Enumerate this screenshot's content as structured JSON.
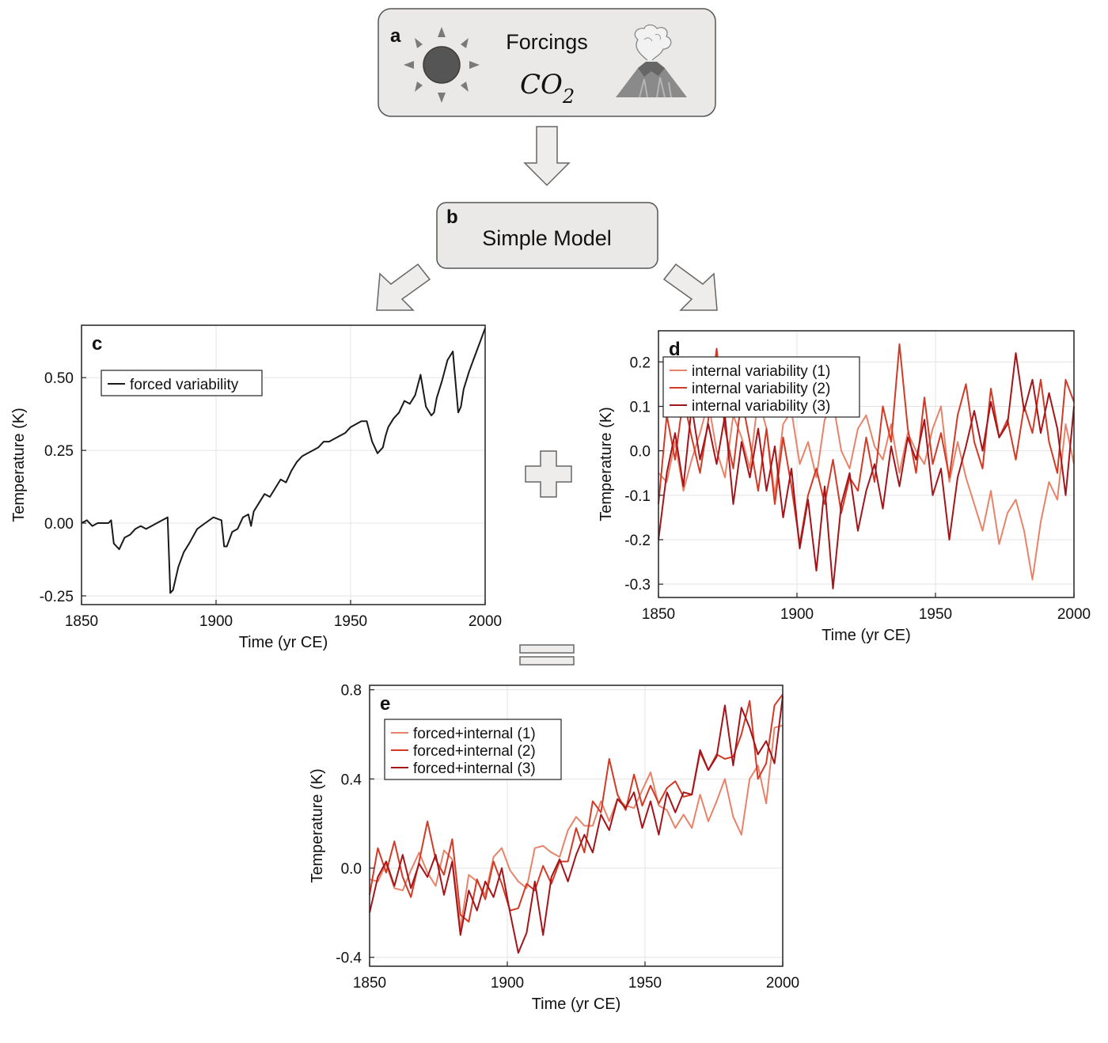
{
  "diagram": {
    "box_a": {
      "letter": "a",
      "title": "Forcings",
      "co2_main": "CO",
      "co2_sub": "2"
    },
    "box_b": {
      "letter": "b",
      "title": "Simple Model"
    },
    "icons": [
      "sun-icon",
      "volcano-icon",
      "arrow-down-icon",
      "arrow-left-down-icon",
      "arrow-right-down-icon",
      "plus-icon",
      "equals-icon"
    ],
    "colors": {
      "box_fill": "#ebe9e7",
      "box_stroke": "#555555",
      "arrow_fill": "#efedeb",
      "black": "#1a1a1a",
      "light_red": "#e8836a",
      "mid_red": "#d23a26",
      "dark_red": "#a3151b"
    }
  },
  "chart_data": [
    {
      "id": "c",
      "type": "line",
      "panel_letter": "c",
      "xlabel": "Time (yr CE)",
      "ylabel": "Temperature (K)",
      "xlim": [
        1850,
        2000
      ],
      "ylim": [
        -0.28,
        0.68
      ],
      "xticks": [
        "1850",
        "1900",
        "1950",
        "2000"
      ],
      "yticks": [
        "-0.25",
        "0.00",
        "0.25",
        "0.50"
      ],
      "grid": true,
      "legend_position": "top-left",
      "series": [
        {
          "name": "forced variability",
          "color": "#1a1a1a",
          "x": [
            1850,
            1852,
            1854,
            1856,
            1858,
            1860,
            1861,
            1862,
            1864,
            1866,
            1868,
            1870,
            1872,
            1874,
            1876,
            1878,
            1880,
            1882,
            1883,
            1884,
            1886,
            1888,
            1890,
            1893,
            1896,
            1899,
            1902,
            1903,
            1904,
            1906,
            1908,
            1910,
            1912,
            1913,
            1914,
            1916,
            1918,
            1920,
            1922,
            1924,
            1926,
            1928,
            1930,
            1932,
            1934,
            1936,
            1938,
            1940,
            1942,
            1944,
            1946,
            1948,
            1950,
            1952,
            1954,
            1956,
            1958,
            1960,
            1961,
            1962,
            1963,
            1964,
            1966,
            1968,
            1970,
            1972,
            1974,
            1976,
            1978,
            1980,
            1981,
            1982,
            1984,
            1986,
            1988,
            1990,
            1991,
            1992,
            1994,
            1996,
            1998,
            2000
          ],
          "y": [
            0.0,
            0.01,
            -0.01,
            0.0,
            0.0,
            0.0,
            0.01,
            -0.07,
            -0.09,
            -0.05,
            -0.04,
            -0.02,
            -0.01,
            -0.02,
            -0.01,
            0.0,
            0.01,
            0.02,
            -0.24,
            -0.23,
            -0.15,
            -0.1,
            -0.07,
            -0.02,
            0.0,
            0.02,
            0.01,
            -0.08,
            -0.08,
            -0.03,
            -0.02,
            0.02,
            0.03,
            -0.01,
            0.04,
            0.07,
            0.1,
            0.09,
            0.12,
            0.15,
            0.14,
            0.18,
            0.21,
            0.23,
            0.24,
            0.25,
            0.26,
            0.28,
            0.28,
            0.29,
            0.3,
            0.31,
            0.33,
            0.34,
            0.35,
            0.35,
            0.28,
            0.24,
            0.25,
            0.26,
            0.3,
            0.33,
            0.36,
            0.38,
            0.42,
            0.41,
            0.44,
            0.51,
            0.4,
            0.37,
            0.38,
            0.43,
            0.49,
            0.56,
            0.59,
            0.38,
            0.4,
            0.46,
            0.52,
            0.57,
            0.62,
            0.67
          ]
        }
      ]
    },
    {
      "id": "d",
      "type": "line",
      "panel_letter": "d",
      "xlabel": "Time (yr CE)",
      "ylabel": "Temperature (K)",
      "xlim": [
        1850,
        2000
      ],
      "ylim": [
        -0.33,
        0.27
      ],
      "xticks": [
        "1850",
        "1900",
        "1950",
        "2000"
      ],
      "yticks": [
        "-0.3",
        "-0.2",
        "-0.1",
        "0.0",
        "0.1",
        "0.2"
      ],
      "grid": true,
      "legend_position": "top-left",
      "series": [
        {
          "name": "internal variability (1)",
          "color": "#e8836a",
          "x": [
            1850,
            1853,
            1856,
            1859,
            1862,
            1865,
            1868,
            1871,
            1874,
            1877,
            1880,
            1883,
            1886,
            1889,
            1892,
            1895,
            1898,
            1901,
            1904,
            1907,
            1910,
            1913,
            1916,
            1919,
            1922,
            1925,
            1928,
            1931,
            1934,
            1937,
            1940,
            1943,
            1946,
            1949,
            1952,
            1955,
            1958,
            1961,
            1964,
            1967,
            1970,
            1973,
            1976,
            1979,
            1982,
            1985,
            1988,
            1991,
            1994,
            1997,
            2000
          ],
          "y": [
            -0.05,
            -0.07,
            0.02,
            -0.09,
            -0.02,
            0.04,
            0.11,
            0.0,
            -0.06,
            0.08,
            0.03,
            -0.04,
            0.12,
            0.05,
            -0.1,
            0.06,
            0.09,
            -0.03,
            0.02,
            -0.06,
            0.07,
            0.11,
            0.0,
            -0.04,
            0.05,
            0.08,
            0.01,
            -0.02,
            0.06,
            -0.05,
            0.04,
            0.0,
            -0.03,
            0.05,
            0.1,
            -0.07,
            0.02,
            -0.06,
            -0.12,
            -0.18,
            -0.09,
            -0.21,
            -0.14,
            -0.11,
            -0.18,
            -0.29,
            -0.16,
            -0.07,
            -0.11,
            0.06,
            -0.03
          ]
        },
        {
          "name": "internal variability (2)",
          "color": "#d23a26",
          "x": [
            1850,
            1853,
            1856,
            1859,
            1862,
            1865,
            1868,
            1871,
            1874,
            1877,
            1880,
            1883,
            1886,
            1889,
            1892,
            1895,
            1898,
            1901,
            1904,
            1907,
            1910,
            1913,
            1916,
            1919,
            1922,
            1925,
            1928,
            1931,
            1934,
            1937,
            1940,
            1943,
            1946,
            1949,
            1952,
            1955,
            1958,
            1961,
            1964,
            1967,
            1970,
            1973,
            1976,
            1979,
            1982,
            1985,
            1988,
            1991,
            1994,
            1997,
            2000
          ],
          "y": [
            -0.12,
            0.08,
            -0.02,
            0.12,
            0.03,
            -0.05,
            0.07,
            0.23,
            0.05,
            -0.04,
            0.12,
            0.02,
            -0.09,
            0.05,
            -0.12,
            0.03,
            -0.08,
            -0.21,
            -0.1,
            -0.04,
            -0.12,
            -0.02,
            -0.14,
            -0.06,
            -0.09,
            0.03,
            -0.07,
            0.1,
            0.02,
            0.24,
            0.05,
            -0.05,
            0.12,
            -0.03,
            0.04,
            -0.06,
            0.08,
            0.15,
            0.02,
            -0.04,
            0.14,
            0.03,
            0.07,
            -0.02,
            0.1,
            0.04,
            0.16,
            0.02,
            -0.05,
            0.16,
            0.11
          ]
        },
        {
          "name": "internal variability (3)",
          "color": "#a3151b",
          "x": [
            1850,
            1853,
            1856,
            1859,
            1862,
            1865,
            1868,
            1871,
            1874,
            1877,
            1880,
            1883,
            1886,
            1889,
            1892,
            1895,
            1898,
            1901,
            1904,
            1907,
            1910,
            1913,
            1916,
            1919,
            1922,
            1925,
            1928,
            1931,
            1934,
            1937,
            1940,
            1943,
            1946,
            1949,
            1952,
            1955,
            1958,
            1961,
            1964,
            1967,
            1970,
            1973,
            1976,
            1979,
            1982,
            1985,
            1988,
            1991,
            1994,
            1997,
            2000
          ],
          "y": [
            -0.2,
            -0.05,
            0.04,
            -0.08,
            0.1,
            -0.02,
            0.06,
            -0.03,
            0.08,
            -0.12,
            0.02,
            -0.06,
            0.05,
            -0.09,
            0.01,
            -0.15,
            -0.04,
            -0.22,
            -0.11,
            -0.27,
            -0.08,
            -0.31,
            -0.12,
            -0.05,
            -0.18,
            -0.09,
            -0.03,
            -0.13,
            0.01,
            -0.08,
            0.03,
            -0.02,
            0.07,
            -0.1,
            -0.04,
            -0.2,
            -0.06,
            0.01,
            0.09,
            0.0,
            0.11,
            0.03,
            0.06,
            0.22,
            0.09,
            0.16,
            0.04,
            0.13,
            0.05,
            -0.1,
            0.1
          ]
        }
      ]
    },
    {
      "id": "e",
      "type": "line",
      "panel_letter": "e",
      "xlabel": "Time (yr CE)",
      "ylabel": "Temperature (K)",
      "xlim": [
        1850,
        2000
      ],
      "ylim": [
        -0.44,
        0.82
      ],
      "xticks": [
        "1850",
        "1900",
        "1950",
        "2000"
      ],
      "yticks": [
        "-0.4",
        "0.0",
        "0.4",
        "0.8"
      ],
      "grid": true,
      "legend_position": "top-left",
      "series": [
        {
          "name": "forced+internal (1)",
          "color": "#e8836a",
          "x": [
            1850,
            1853,
            1856,
            1859,
            1862,
            1865,
            1868,
            1871,
            1874,
            1877,
            1880,
            1883,
            1886,
            1889,
            1892,
            1895,
            1898,
            1901,
            1904,
            1907,
            1910,
            1913,
            1916,
            1919,
            1922,
            1925,
            1928,
            1931,
            1934,
            1937,
            1940,
            1943,
            1946,
            1949,
            1952,
            1955,
            1958,
            1961,
            1964,
            1967,
            1970,
            1973,
            1976,
            1979,
            1982,
            1985,
            1988,
            1991,
            1994,
            1997,
            2000
          ],
          "y": [
            -0.05,
            -0.06,
            0.02,
            -0.09,
            -0.1,
            -0.01,
            0.07,
            -0.02,
            -0.08,
            0.08,
            0.04,
            -0.27,
            -0.03,
            -0.06,
            -0.12,
            0.05,
            0.09,
            -0.01,
            -0.06,
            -0.09,
            0.09,
            0.1,
            0.07,
            0.05,
            0.17,
            0.23,
            0.19,
            0.19,
            0.3,
            0.21,
            0.31,
            0.28,
            0.27,
            0.35,
            0.43,
            0.28,
            0.26,
            0.18,
            0.24,
            0.18,
            0.33,
            0.21,
            0.3,
            0.4,
            0.23,
            0.15,
            0.4,
            0.46,
            0.29,
            0.63,
            0.64
          ]
        },
        {
          "name": "forced+internal (2)",
          "color": "#d23a26",
          "x": [
            1850,
            1853,
            1856,
            1859,
            1862,
            1865,
            1868,
            1871,
            1874,
            1877,
            1880,
            1883,
            1886,
            1889,
            1892,
            1895,
            1898,
            1901,
            1904,
            1907,
            1910,
            1913,
            1916,
            1919,
            1922,
            1925,
            1928,
            1931,
            1934,
            1937,
            1940,
            1943,
            1946,
            1949,
            1952,
            1955,
            1958,
            1961,
            1964,
            1967,
            1970,
            1973,
            1976,
            1979,
            1982,
            1985,
            1988,
            1991,
            1994,
            1997,
            2000
          ],
          "y": [
            -0.12,
            0.09,
            -0.02,
            0.12,
            -0.04,
            -0.13,
            0.03,
            0.21,
            0.04,
            -0.03,
            0.13,
            -0.21,
            -0.24,
            -0.05,
            -0.14,
            0.03,
            -0.07,
            -0.19,
            -0.18,
            -0.07,
            -0.1,
            0.01,
            -0.07,
            0.03,
            0.03,
            0.18,
            0.07,
            0.3,
            0.25,
            0.49,
            0.33,
            0.26,
            0.42,
            0.28,
            0.37,
            0.29,
            0.36,
            0.39,
            0.32,
            0.33,
            0.52,
            0.44,
            0.51,
            0.49,
            0.5,
            0.6,
            0.75,
            0.4,
            0.47,
            0.73,
            0.78
          ]
        },
        {
          "name": "forced+internal (3)",
          "color": "#a3151b",
          "x": [
            1850,
            1853,
            1856,
            1859,
            1862,
            1865,
            1868,
            1871,
            1874,
            1877,
            1880,
            1883,
            1886,
            1889,
            1892,
            1895,
            1898,
            1901,
            1904,
            1907,
            1910,
            1913,
            1916,
            1919,
            1922,
            1925,
            1928,
            1931,
            1934,
            1937,
            1940,
            1943,
            1946,
            1949,
            1952,
            1955,
            1958,
            1961,
            1964,
            1967,
            1970,
            1973,
            1976,
            1979,
            1982,
            1985,
            1988,
            1991,
            1994,
            1997,
            2000
          ],
          "y": [
            -0.2,
            -0.04,
            0.03,
            -0.08,
            0.06,
            -0.09,
            0.02,
            -0.04,
            0.06,
            -0.12,
            0.03,
            -0.3,
            -0.1,
            -0.19,
            -0.06,
            -0.13,
            0.0,
            -0.2,
            -0.38,
            -0.29,
            -0.06,
            -0.3,
            -0.04,
            0.04,
            -0.06,
            0.06,
            0.15,
            0.07,
            0.24,
            0.17,
            0.31,
            0.27,
            0.34,
            0.18,
            0.3,
            0.15,
            0.34,
            0.25,
            0.34,
            0.33,
            0.53,
            0.44,
            0.5,
            0.73,
            0.46,
            0.72,
            0.63,
            0.51,
            0.57,
            0.47,
            0.77
          ]
        }
      ]
    }
  ]
}
